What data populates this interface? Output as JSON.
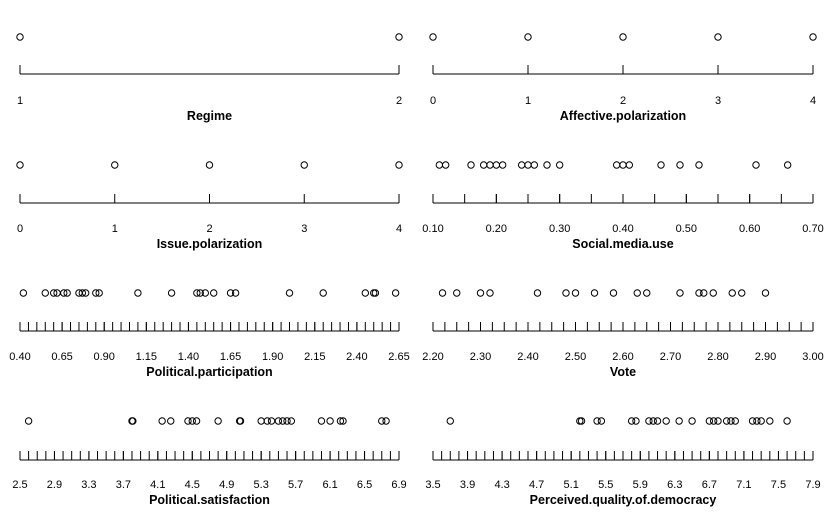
{
  "chart_data": [
    {
      "type": "scatter",
      "xlabel": "Regime",
      "ticks": [
        1,
        2
      ],
      "tick_labels": [
        "1",
        "2"
      ],
      "xlim": [
        1,
        2
      ],
      "minor_step": null,
      "values": [
        1,
        2
      ]
    },
    {
      "type": "scatter",
      "xlabel": "Affective.polarization",
      "ticks": [
        0,
        1,
        2,
        3,
        4
      ],
      "tick_labels": [
        "0",
        "1",
        "2",
        "3",
        "4"
      ],
      "xlim": [
        0,
        4
      ],
      "minor_step": null,
      "values": [
        0,
        1,
        2,
        3,
        4
      ]
    },
    {
      "type": "scatter",
      "xlabel": "Issue.polarization",
      "ticks": [
        0,
        1,
        2,
        3,
        4
      ],
      "tick_labels": [
        "0",
        "1",
        "2",
        "3",
        "4"
      ],
      "xlim": [
        0,
        4
      ],
      "minor_step": null,
      "values": [
        0,
        1,
        2,
        3,
        4
      ]
    },
    {
      "type": "scatter",
      "xlabel": "Social.media.use",
      "ticks": [
        0.1,
        0.2,
        0.3,
        0.4,
        0.5,
        0.6,
        0.7
      ],
      "tick_labels": [
        "0.10",
        "0.20",
        "0.30",
        "0.40",
        "0.50",
        "0.60",
        "0.70"
      ],
      "xlim": [
        0.1,
        0.7
      ],
      "minor_step": 0.05,
      "values": [
        0.11,
        0.12,
        0.16,
        0.18,
        0.19,
        0.2,
        0.21,
        0.24,
        0.25,
        0.26,
        0.28,
        0.3,
        0.39,
        0.4,
        0.41,
        0.46,
        0.49,
        0.52,
        0.61,
        0.66
      ]
    },
    {
      "type": "scatter",
      "xlabel": "Political.participation",
      "ticks": [
        0.4,
        0.65,
        0.9,
        1.15,
        1.4,
        1.65,
        1.9,
        2.15,
        2.4,
        2.65
      ],
      "tick_labels": [
        "0.40",
        "0.65",
        "0.90",
        "1.15",
        "1.40",
        "1.65",
        "1.90",
        "2.15",
        "2.40",
        "2.65"
      ],
      "xlim": [
        0.4,
        2.65
      ],
      "minor_step": 0.05,
      "values": [
        0.42,
        0.55,
        0.6,
        0.62,
        0.66,
        0.68,
        0.75,
        0.77,
        0.79,
        0.85,
        0.87,
        1.1,
        1.3,
        1.45,
        1.47,
        1.5,
        1.55,
        1.65,
        1.68,
        2.0,
        2.2,
        2.45,
        2.5,
        2.51,
        2.63
      ]
    },
    {
      "type": "scatter",
      "xlabel": "Vote",
      "ticks": [
        2.2,
        2.3,
        2.4,
        2.5,
        2.6,
        2.7,
        2.8,
        2.9,
        3.0
      ],
      "tick_labels": [
        "2.20",
        "2.30",
        "2.40",
        "2.50",
        "2.60",
        "2.70",
        "2.80",
        "2.90",
        "3.00"
      ],
      "xlim": [
        2.2,
        3.0
      ],
      "minor_step": 0.025,
      "values": [
        2.22,
        2.25,
        2.3,
        2.32,
        2.42,
        2.48,
        2.5,
        2.54,
        2.58,
        2.63,
        2.65,
        2.72,
        2.76,
        2.77,
        2.79,
        2.83,
        2.85,
        2.9
      ]
    },
    {
      "type": "scatter",
      "xlabel": "Political.satisfaction",
      "ticks": [
        2.5,
        2.9,
        3.3,
        3.7,
        4.1,
        4.5,
        4.9,
        5.3,
        5.7,
        6.1,
        6.5,
        6.9
      ],
      "tick_labels": [
        "2.5",
        "2.9",
        "3.3",
        "3.7",
        "4.1",
        "4.5",
        "4.9",
        "5.3",
        "5.7",
        "6.1",
        "6.5",
        "6.9"
      ],
      "xlim": [
        2.5,
        6.9
      ],
      "minor_step": 0.1,
      "values": [
        2.6,
        3.8,
        3.81,
        4.15,
        4.25,
        4.45,
        4.5,
        4.55,
        4.8,
        5.05,
        5.06,
        5.3,
        5.37,
        5.42,
        5.5,
        5.55,
        5.6,
        5.65,
        6.0,
        6.1,
        6.22,
        6.25,
        6.7,
        6.75
      ]
    },
    {
      "type": "scatter",
      "xlabel": "Perceived.quality.of.democracy",
      "ticks": [
        3.5,
        3.9,
        4.3,
        4.7,
        5.1,
        5.5,
        5.9,
        6.3,
        6.7,
        7.1,
        7.5,
        7.9
      ],
      "tick_labels": [
        "3.5",
        "3.9",
        "4.3",
        "4.7",
        "5.1",
        "5.5",
        "5.9",
        "6.3",
        "6.7",
        "7.1",
        "7.5",
        "7.9"
      ],
      "xlim": [
        3.5,
        7.9
      ],
      "minor_step": 0.1,
      "values": [
        3.7,
        5.2,
        5.22,
        5.4,
        5.45,
        5.8,
        5.85,
        6.0,
        6.05,
        6.1,
        6.2,
        6.35,
        6.5,
        6.7,
        6.75,
        6.8,
        6.9,
        6.95,
        7.0,
        7.2,
        7.25,
        7.3,
        7.4,
        7.6
      ]
    }
  ]
}
